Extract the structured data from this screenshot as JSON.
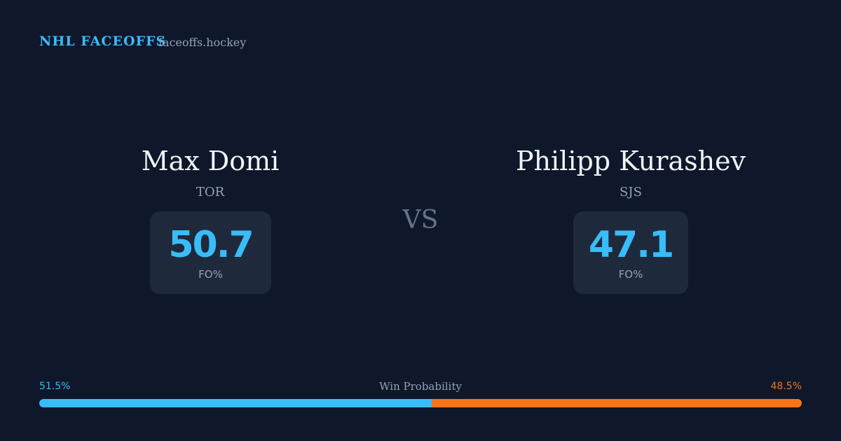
{
  "header": {
    "brand": "NHL FACEOFFS",
    "site": "faceoffs.hockey"
  },
  "players": [
    {
      "name": "Max Domi",
      "team": "TOR",
      "fo_pct": 50.7,
      "fo_label": "FO%"
    },
    {
      "name": "Philipp Kurashev",
      "team": "SJS",
      "fo_pct": 47.1,
      "fo_label": "FO%"
    }
  ],
  "vs": "VS",
  "win_probability": {
    "label": "Win Probability",
    "values": [
      {
        "value": 51.5,
        "label": "51.5%"
      },
      {
        "value": 48.5,
        "label": "48.5%"
      }
    ],
    "colors": [
      "#38bdf8",
      "#f97316"
    ]
  }
}
